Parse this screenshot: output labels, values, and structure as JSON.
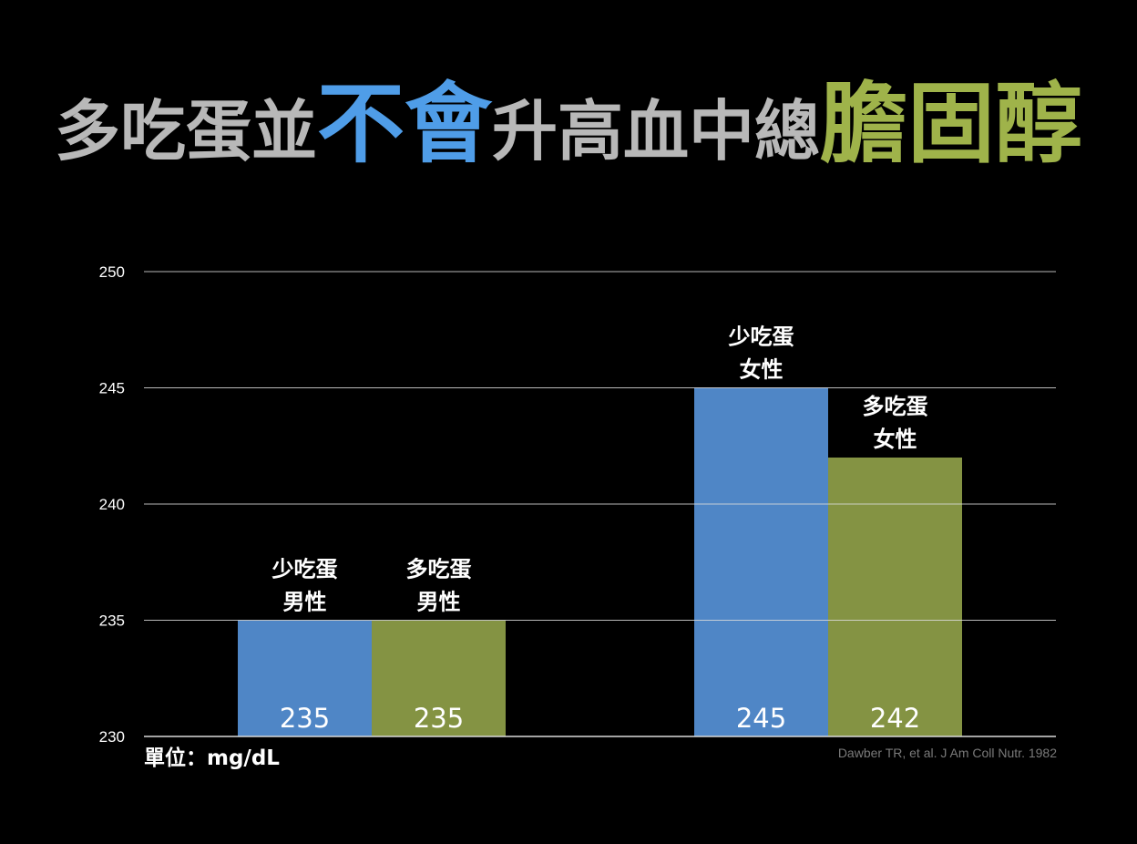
{
  "title": {
    "part1": "多吃蛋並",
    "part2": "不會",
    "part3": "升高血中總",
    "part4": "膽固醇"
  },
  "colors": {
    "background": "#000000",
    "title_gray": "#b8b8b8",
    "title_blue": "#4f9de8",
    "title_green": "#9fb34a",
    "bar_low_egg": "#4f86c6",
    "bar_high_egg": "#849343",
    "gridline": "#d9d9d9"
  },
  "unit_label": "單位：mg/dL",
  "source": "Dawber TR, et al. J Am Coll Nutr.  1982",
  "chart_data": {
    "type": "bar",
    "ylim": [
      230,
      250
    ],
    "yticks": [
      230,
      235,
      240,
      245,
      250
    ],
    "grid": true,
    "bars": [
      {
        "group": "男性",
        "label_line1": "少吃蛋",
        "label_line2": "男性",
        "value": 235,
        "color": "#4f86c6"
      },
      {
        "group": "男性",
        "label_line1": "多吃蛋",
        "label_line2": "男性",
        "value": 235,
        "color": "#849343"
      },
      {
        "group": "女性",
        "label_line1": "少吃蛋",
        "label_line2": "女性",
        "value": 245,
        "color": "#4f86c6"
      },
      {
        "group": "女性",
        "label_line1": "多吃蛋",
        "label_line2": "女性",
        "value": 242,
        "color": "#849343"
      }
    ]
  }
}
